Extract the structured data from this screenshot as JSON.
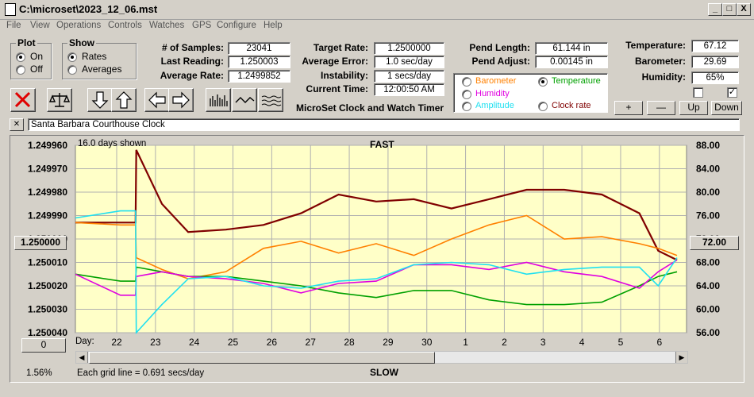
{
  "window": {
    "title": "C:\\microset\\2023_12_06.mst",
    "btn_min": "_",
    "btn_max": "□",
    "btn_close": "X"
  },
  "menu": [
    "File",
    "View",
    "Operations",
    "Controls",
    "Watches",
    "GPS",
    "Configure",
    "Help"
  ],
  "plot_group": {
    "title": "Plot",
    "on": "On",
    "off": "Off",
    "selected": "On"
  },
  "show_group": {
    "title": "Show",
    "rates": "Rates",
    "averages": "Averages",
    "selected": "Rates"
  },
  "stats": {
    "samples_label": "# of Samples:",
    "samples": "23041",
    "last_label": "Last Reading:",
    "last": "1.250003",
    "avgrate_label": "Average Rate:",
    "avgrate": "1.2499852"
  },
  "rates": {
    "target_label": "Target Rate:",
    "target": "1.2500000",
    "avgerr_label": "Average Error:",
    "avgerr": "1.0 sec/day",
    "instab_label": "Instability:",
    "instab": "1 secs/day",
    "time_label": "Current Time:",
    "time": "12:00:50 AM"
  },
  "pend": {
    "length_label": "Pend Length:",
    "length": "61.144 in",
    "adjust_label": "Pend Adjust:",
    "adjust": "0.00145 in"
  },
  "env": {
    "temp_label": "Temperature:",
    "temp": "67.12",
    "baro_label": "Barometer:",
    "baro": "29.69",
    "hum_label": "Humidity:",
    "hum": "65%"
  },
  "series_select": {
    "barometer": "Barometer",
    "temperature": "Temperature",
    "humidity": "Humidity",
    "amplitude": "Amplitude",
    "clockrate": "Clock rate",
    "selected": "Temperature"
  },
  "controls": {
    "plus": "+",
    "minus": "—",
    "up": "Up",
    "down": "Down",
    "chk2": "✓"
  },
  "app_title": "MicroSet Clock and Watch Timer",
  "clock_name": "Santa Barbara Courthouse Clock",
  "clear_btn": "✕",
  "plot": {
    "days_shown": "16.0 days shown",
    "fast": "FAST",
    "slow": "SLOW",
    "left_value_btn": "1.250000",
    "right_value_btn": "72.00",
    "bottom_btn": "0",
    "day_label": "Day:",
    "grid_note": "Each grid line = 0.691 secs/day",
    "percent": "1.56%"
  },
  "colors": {
    "bg_plot": "#ffffc8",
    "rate": "#800000",
    "barometer": "#ff8000",
    "temperature": "#00a000",
    "humidity": "#e000e0",
    "amplitude": "#20e0f0",
    "clockrate": "#800000"
  },
  "chart_data": {
    "type": "line",
    "title": "FAST",
    "y_left_ticks": [
      "1.249960",
      "1.249970",
      "1.249980",
      "1.249990",
      "1.250000",
      "1.250010",
      "1.250020",
      "1.250030",
      "1.250040"
    ],
    "y_right_ticks": [
      "88.00",
      "84.00",
      "80.00",
      "76.00",
      "72.00",
      "68.00",
      "64.00",
      "60.00",
      "56.00"
    ],
    "x_ticks": [
      "22",
      "23",
      "24",
      "25",
      "26",
      "27",
      "28",
      "29",
      "30",
      "1",
      "2",
      "3",
      "4",
      "5",
      "6"
    ],
    "ylim_left": [
      1.24996,
      1.25004
    ],
    "ylim_right": [
      56,
      88
    ],
    "x": [
      0,
      1.2,
      1.6,
      1.62,
      2.3,
      3,
      4,
      5,
      6,
      7,
      8,
      9,
      10,
      11,
      12,
      13,
      14,
      15,
      15.5,
      16
    ],
    "series": [
      {
        "color": "#800000",
        "values": [
          1.249993,
          1.249993,
          1.249993,
          1.249962,
          1.249985,
          1.249997,
          1.249996,
          1.249994,
          1.249989,
          1.249981,
          1.249984,
          1.249983,
          1.249987,
          1.249983,
          1.249979,
          1.249979,
          1.249981,
          1.249989,
          1.250005,
          1.250009
        ]
      },
      {
        "color": "#ff8000",
        "values": [
          1.249993,
          1.249994,
          1.249994,
          1.250008,
          1.250013,
          1.250017,
          1.250014,
          1.250004,
          1.250001,
          1.250006,
          1.250002,
          1.250007,
          1.25,
          1.249994,
          1.24999,
          1.25,
          1.249999,
          1.250002,
          1.250004,
          1.250007
        ]
      },
      {
        "color": "#00a000",
        "values": [
          1.250015,
          1.250018,
          1.250018,
          1.250012,
          1.250014,
          1.250016,
          1.250016,
          1.250018,
          1.25002,
          1.250023,
          1.250025,
          1.250022,
          1.250022,
          1.250026,
          1.250028,
          1.250028,
          1.250027,
          1.25002,
          1.250016,
          1.250014
        ]
      },
      {
        "color": "#e000e0",
        "values": [
          1.250015,
          1.250024,
          1.250024,
          1.250016,
          1.250014,
          1.250016,
          1.250017,
          1.250019,
          1.250023,
          1.250019,
          1.250018,
          1.250011,
          1.250011,
          1.250013,
          1.25001,
          1.250014,
          1.250016,
          1.250021,
          1.250014,
          1.250009
        ]
      },
      {
        "color": "#20e0f0",
        "values": [
          1.249991,
          1.249988,
          1.249988,
          1.25004,
          1.250028,
          1.250017,
          1.250016,
          1.25002,
          1.250021,
          1.250018,
          1.250017,
          1.250011,
          1.25001,
          1.250011,
          1.250015,
          1.250013,
          1.250012,
          1.250012,
          1.25002,
          1.250008
        ]
      }
    ]
  }
}
